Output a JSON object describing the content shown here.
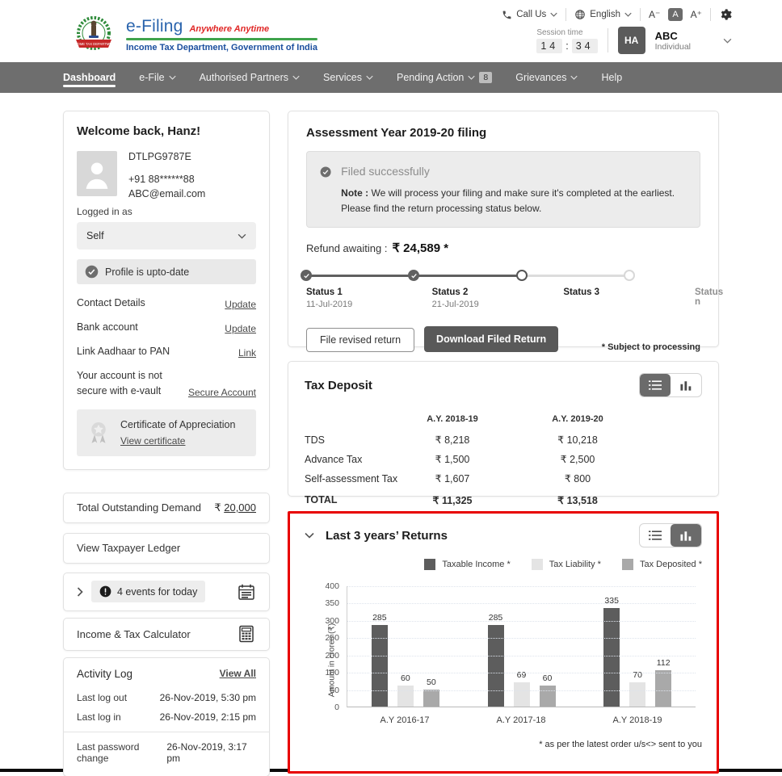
{
  "header": {
    "call_us_label": "Call Us",
    "language_label": "English",
    "font_decrease": "A⁻",
    "font_reset": "A",
    "font_increase": "A⁺",
    "session_time_label": "Session time",
    "session_minutes": "14",
    "session_colon": ":",
    "session_seconds": "34",
    "avatar_initials": "HA",
    "user_name": "ABC",
    "user_type": "Individual",
    "brand": {
      "app_name": "e-Filing",
      "tagline": "Anywhere Anytime",
      "dept_line": "Income Tax Department, Government of India"
    }
  },
  "nav": {
    "items": [
      {
        "label": "Dashboard"
      },
      {
        "label": "e-File"
      },
      {
        "label": "Authorised Partners"
      },
      {
        "label": "Services"
      },
      {
        "label": "Pending Action",
        "badge": "8"
      },
      {
        "label": "Grievances"
      },
      {
        "label": "Help"
      }
    ]
  },
  "sidebar": {
    "welcome": {
      "greeting": "Welcome back, Hanz!",
      "pan": "DTLPG9787E",
      "phone": "+91  88******88",
      "email": "ABC@email.com",
      "logged_in_as_label": "Logged in as",
      "role_selected": "Self",
      "profile_status": "Profile is upto-date",
      "links": [
        {
          "label": "Contact Details",
          "action": "Update"
        },
        {
          "label": "Bank account",
          "action": "Update"
        },
        {
          "label": "Link Aadhaar to PAN",
          "action": "Link"
        },
        {
          "label": "Your account is not secure with e-vault",
          "action": "Secure Account"
        }
      ],
      "certificate_title": "Certificate of Appreciation",
      "certificate_link": "View certificate"
    },
    "outstanding_demand": {
      "label": "Total Outstanding Demand",
      "currency": "₹",
      "value": "20,000"
    },
    "ledger_label": "View Taxpayer Ledger",
    "events_label": "4 events for today",
    "calculator_label": "Income & Tax Calculator",
    "activity_log": {
      "title": "Activity Log",
      "view_all": "View All",
      "rows": [
        {
          "label": "Last log out",
          "value": "26-Nov-2019, 5:30 pm"
        },
        {
          "label": "Last log in",
          "value": "26-Nov-2019, 2:15 pm"
        },
        {
          "label": "Last password change",
          "value": "26-Nov-2019, 3:17 pm"
        }
      ]
    }
  },
  "main": {
    "filing": {
      "title": "Assessment Year 2019-20 filing",
      "status_text": "Filed successfully",
      "note_label": "Note :",
      "note_text": "We will process your filing and make sure it's completed at the earliest. Please find the return processing status below.",
      "refund_label": "Refund awaiting :",
      "refund_amount": "₹ 24,589 *",
      "steps": [
        {
          "label": "Status 1",
          "date": "11-Jul-2019",
          "state": "done"
        },
        {
          "label": "Status 2",
          "date": "21-Jul-2019",
          "state": "done"
        },
        {
          "label": "Status 3",
          "date": "",
          "state": "current"
        },
        {
          "label": "Status n",
          "date": "",
          "state": "future"
        }
      ],
      "revised_button": "File revised return",
      "download_button": "Download Filed Return",
      "footnote": "* Subject to processing"
    },
    "tax_deposit": {
      "title": "Tax Deposit",
      "columns": [
        "A.Y. 2018-19",
        "A.Y. 2019-20"
      ],
      "rows": [
        {
          "label": "TDS",
          "v1": "₹ 8,218",
          "v2": "₹ 10,218"
        },
        {
          "label": "Advance Tax",
          "v1": "₹ 1,500",
          "v2": "₹ 2,500"
        },
        {
          "label": "Self-assessment Tax",
          "v1": "₹ 1,607",
          "v2": "₹ 800"
        }
      ],
      "total": {
        "label": "TOTAL",
        "v1": "₹ 11,325",
        "v2": "₹ 13,518"
      }
    },
    "returns": {
      "title": "Last 3 years’ Returns",
      "footnote": "* as per the latest order u/s<> sent to you"
    }
  },
  "chart_data": {
    "type": "bar",
    "title": "Last 3 years' Returns",
    "categories": [
      "A.Y 2016-17",
      "A.Y 2017-18",
      "A.Y 2018-19"
    ],
    "series": [
      {
        "name": "Taxable Income *",
        "color": "#5d5d5d",
        "values": [
          285,
          285,
          335
        ]
      },
      {
        "name": "Tax Liability *",
        "color": "#e4e4e4",
        "values": [
          60,
          69,
          70
        ]
      },
      {
        "name": "Tax Deposited *",
        "color": "#a9a9a9",
        "values": [
          50,
          60,
          112
        ]
      }
    ],
    "ylabel": "Amount in crores (₹)",
    "yticks": [
      400,
      350,
      300,
      250,
      200,
      100,
      50,
      0
    ],
    "ylim": [
      0,
      400
    ],
    "grid": true,
    "legend_position": "top-right",
    "footnote": "* as per the latest order u/s<> sent to you"
  }
}
